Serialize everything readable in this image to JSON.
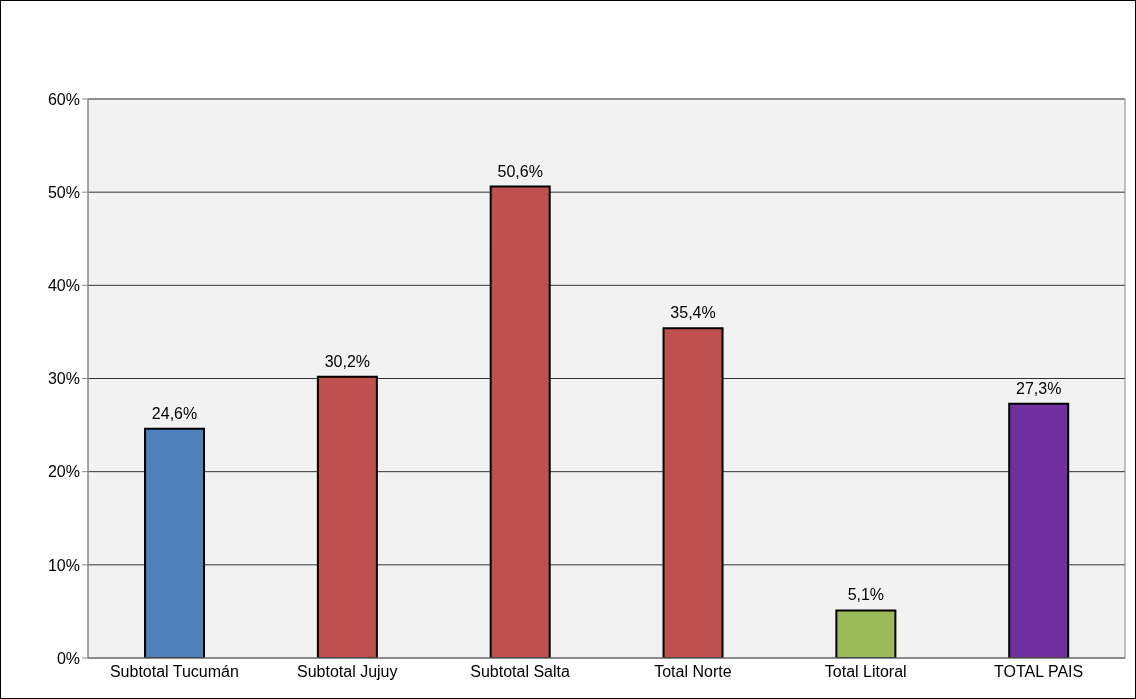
{
  "chart_data": {
    "type": "bar",
    "categories": [
      "Subtotal Tucumán",
      "Subtotal Jujuy",
      "Subtotal Salta",
      "Total Norte",
      "Total Litoral",
      "TOTAL PAIS"
    ],
    "values": [
      24.6,
      30.2,
      50.6,
      35.4,
      5.1,
      27.3
    ],
    "colors": [
      "#4f81bd",
      "#c0504d",
      "#c0504d",
      "#c0504d",
      "#9bbb59",
      "#7030a0"
    ],
    "value_labels": [
      "24,6%",
      "30,2%",
      "50,6%",
      "35,4%",
      "5,1%",
      "27,3%"
    ],
    "ylim": [
      0,
      60
    ],
    "yticks": [
      {
        "value": 0,
        "label": "0%"
      },
      {
        "value": 10,
        "label": "10%"
      },
      {
        "value": 20,
        "label": "20%"
      },
      {
        "value": 30,
        "label": "30%"
      },
      {
        "value": 40,
        "label": "40%"
      },
      {
        "value": 50,
        "label": "50%"
      },
      {
        "value": 60,
        "label": "60%"
      }
    ],
    "grid": "y"
  }
}
